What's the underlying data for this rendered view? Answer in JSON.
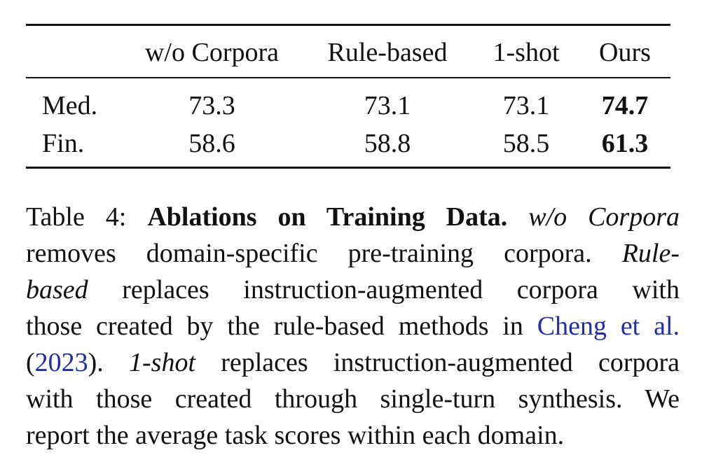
{
  "table": {
    "headers": [
      "",
      "w/o Corpora",
      "Rule-based",
      "1-shot",
      "Ours"
    ],
    "rows": [
      {
        "label": "Med.",
        "values": [
          "73.3",
          "73.1",
          "73.1",
          "74.7"
        ]
      },
      {
        "label": "Fin.",
        "values": [
          "58.6",
          "58.8",
          "58.5",
          "61.3"
        ]
      }
    ],
    "best_column": "Ours"
  },
  "caption": {
    "label": "Table 4:",
    "title": "Ablations on Training Data.",
    "term_corpora": "w/o Corpora",
    "text_corpora": "removes domain-specific pre-training corpora.",
    "term_rule_a": "Rule-",
    "term_rule_b": "based",
    "text_rule_a": "replaces instruction-augmented corpora with",
    "text_rule_b": "those created by the rule-based methods in",
    "cite_author": "Cheng et al.",
    "paren_open": "(",
    "cite_year": "2023",
    "paren_close": ").",
    "term_oneshot": "1-shot",
    "text_oneshot_a": "replaces instruction-augmented corpora",
    "text_oneshot_b": "with those created through single-turn synthesis.",
    "text_we": "We",
    "text_final": "report the average task scores within each domain."
  },
  "colors": {
    "text": "#111111",
    "link": "#1f2ea6"
  }
}
